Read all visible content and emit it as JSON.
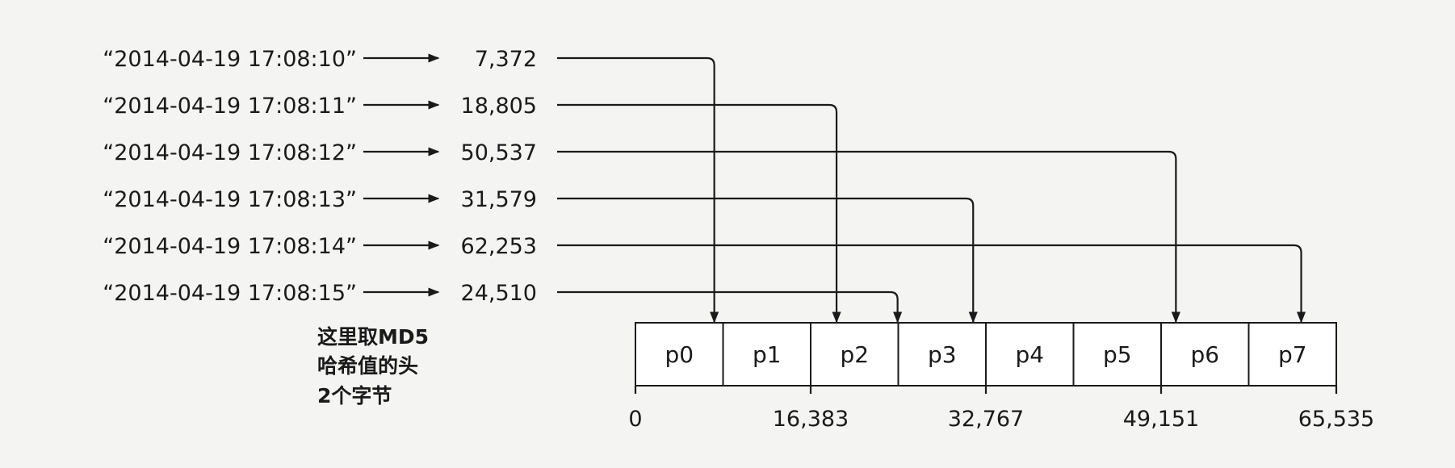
{
  "rows": [
    {
      "timestamp": "“2014-04-19 17:08:10”",
      "hash": "7,372",
      "partition": "p0"
    },
    {
      "timestamp": "“2014-04-19 17:08:11”",
      "hash": "18,805",
      "partition": "p2"
    },
    {
      "timestamp": "“2014-04-19 17:08:12”",
      "hash": "50,537",
      "partition": "p6"
    },
    {
      "timestamp": "“2014-04-19 17:08:13”",
      "hash": "31,579",
      "partition": "p3"
    },
    {
      "timestamp": "“2014-04-19 17:08:14”",
      "hash": "62,253",
      "partition": "p7"
    },
    {
      "timestamp": "“2014-04-19 17:08:15”",
      "hash": "24,510",
      "partition": "p2"
    }
  ],
  "partitions": [
    "p0",
    "p1",
    "p2",
    "p3",
    "p4",
    "p5",
    "p6",
    "p7"
  ],
  "ticks": [
    "0",
    "16,383",
    "32,767",
    "49,151",
    "65,535"
  ],
  "note": [
    "这里取MD5",
    "哈希值的头",
    "2个字节"
  ]
}
